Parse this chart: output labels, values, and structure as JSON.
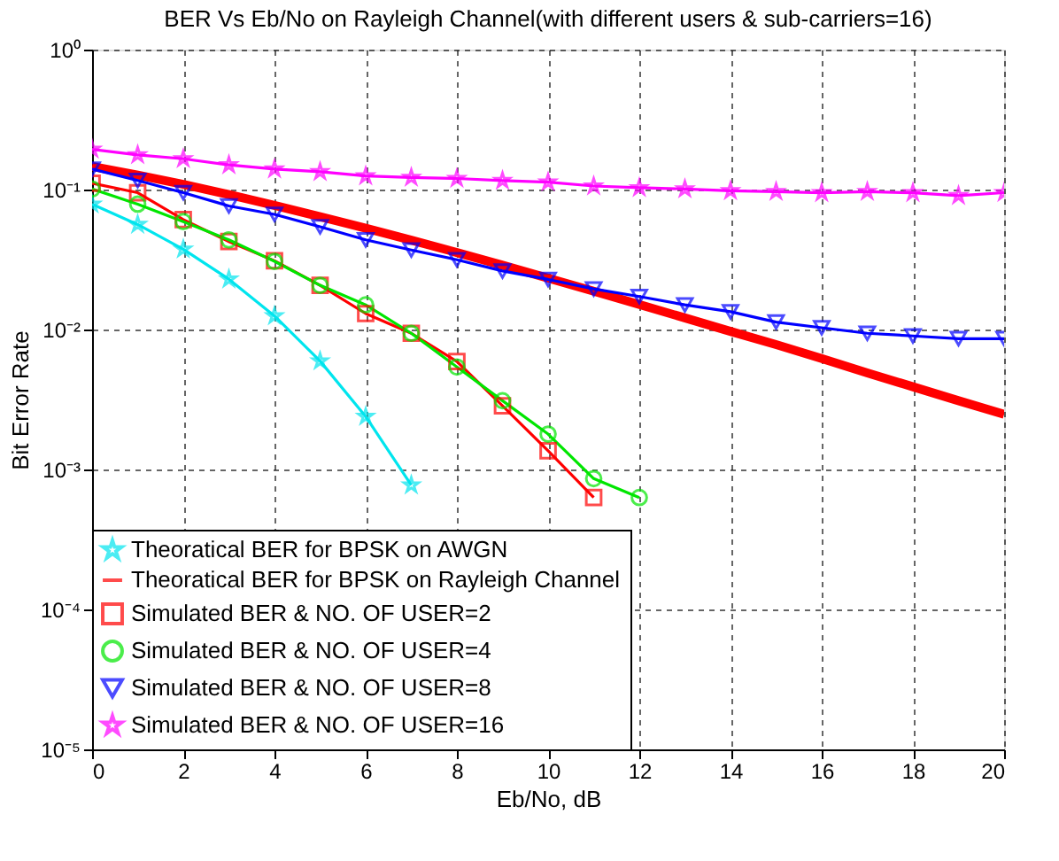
{
  "chart_data": {
    "type": "line",
    "title": "BER Vs Eb/No on Rayleigh Channel(with different users & sub-carriers=16)",
    "xlabel": "Eb/No, dB",
    "ylabel": "Bit Error Rate",
    "x": [
      0,
      1,
      2,
      3,
      4,
      5,
      6,
      7,
      8,
      9,
      10,
      11,
      12,
      13,
      14,
      15,
      16,
      17,
      18,
      19,
      20
    ],
    "log": "y",
    "grid": true,
    "legend": "bottom left",
    "line_style": "solid",
    "xlim": [
      0,
      20
    ],
    "xticks": [
      0,
      2,
      4,
      6,
      8,
      10,
      12,
      14,
      16,
      18,
      20
    ],
    "ylim": [
      1e-05,
      1
    ],
    "yticks": [
      {
        "value": 1e-05,
        "label": "10⁻⁵"
      },
      {
        "value": 0.0001,
        "label": "10⁻⁴"
      },
      {
        "value": 0.001,
        "label": "10⁻³"
      },
      {
        "value": 0.01,
        "label": "10⁻²"
      },
      {
        "value": 0.1,
        "label": "10⁻¹"
      },
      {
        "value": 1,
        "label": "10⁰"
      }
    ],
    "series": [
      {
        "name": "Theoratical BER for BPSK on AWGN",
        "color": "#00e5ee",
        "marker": "star",
        "values": [
          0.0786,
          0.0563,
          0.0375,
          0.0229,
          0.0125,
          0.00595,
          0.00239,
          0.000773,
          null,
          null,
          null,
          null,
          null,
          null,
          null,
          null,
          null,
          null,
          null,
          null,
          null
        ]
      },
      {
        "name": "Theoratical BER for BPSK on Rayleigh Channel",
        "color": "#ff0000",
        "marker": "none",
        "values": [
          0.146,
          0.127,
          0.109,
          0.092,
          0.077,
          0.064,
          0.053,
          0.0435,
          0.0355,
          0.0288,
          0.0233,
          0.0188,
          0.0151,
          0.0121,
          0.0097,
          0.0078,
          0.0062,
          0.0049,
          0.0039,
          0.0031,
          0.00248
        ]
      },
      {
        "name": "Simulated BER & NO. OF USER=2",
        "color": "#ff0000",
        "marker": "square",
        "values": [
          0.111,
          0.095,
          0.061,
          0.0425,
          0.031,
          0.0207,
          0.013,
          0.0094,
          0.0059,
          0.00285,
          0.00136,
          0.00063,
          null,
          null,
          null,
          null,
          null,
          null,
          null,
          null,
          null
        ]
      },
      {
        "name": "Simulated BER & NO. OF USER=4",
        "color": "#00e600",
        "marker": "circle",
        "values": [
          0.101,
          0.0787,
          0.059,
          0.0437,
          0.0307,
          0.0207,
          0.015,
          0.0094,
          0.0054,
          0.0031,
          0.00179,
          0.00086,
          0.00063,
          null,
          null,
          null,
          null,
          null,
          null,
          null,
          null
        ]
      },
      {
        "name": "Simulated BER & NO. OF USER=8",
        "color": "#0000ff",
        "marker": "triangle",
        "values": [
          0.14,
          0.116,
          0.095,
          0.0764,
          0.0665,
          0.0542,
          0.0437,
          0.037,
          0.0315,
          0.0262,
          0.0228,
          0.0195,
          0.0172,
          0.015,
          0.0134,
          0.0113,
          0.0103,
          0.0094,
          0.009,
          0.0086,
          0.0086
        ]
      },
      {
        "name": "Simulated BER & NO. OF USER=16",
        "color": "#ff00ff",
        "marker": "star",
        "values": [
          0.194,
          0.177,
          0.166,
          0.15,
          0.14,
          0.134,
          0.125,
          0.122,
          0.12,
          0.116,
          0.113,
          0.106,
          0.103,
          0.101,
          0.098,
          0.0966,
          0.0948,
          0.0966,
          0.0948,
          0.0904,
          0.095
        ]
      }
    ]
  }
}
